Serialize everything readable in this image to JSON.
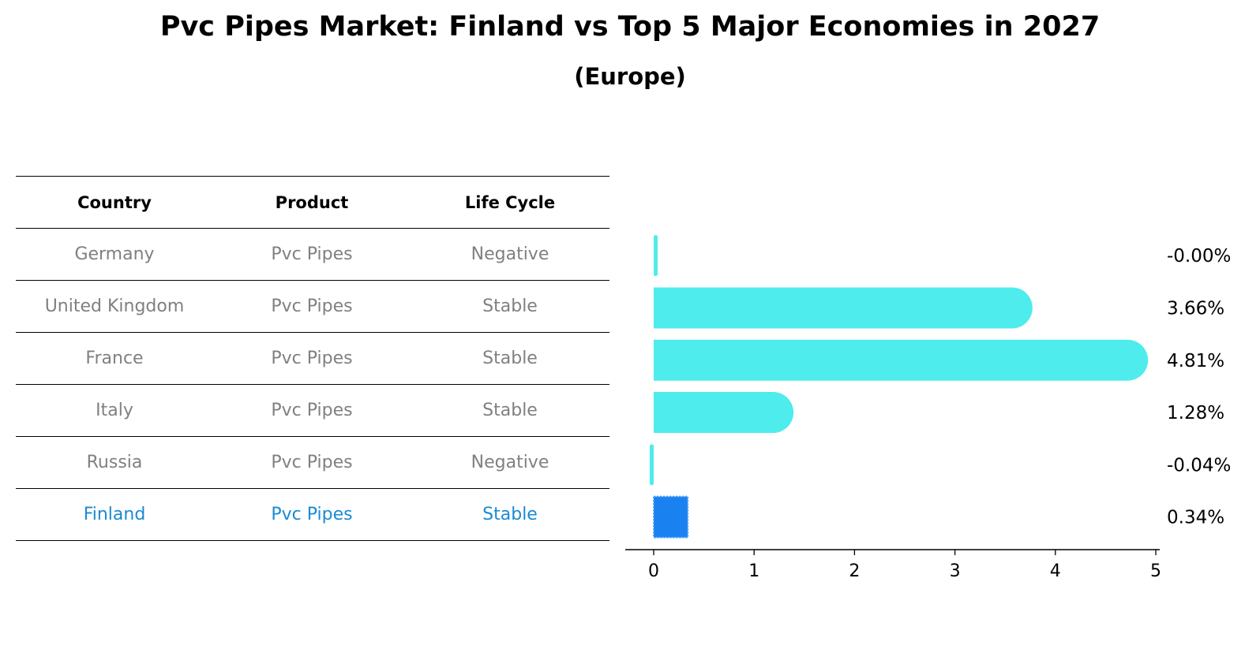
{
  "title": "Pvc Pipes Market: Finland vs Top 5 Major Economies in 2027",
  "subtitle": "(Europe)",
  "table": {
    "headers": [
      "Country",
      "Product",
      "Life Cycle"
    ],
    "rows": [
      [
        "Germany",
        "Pvc Pipes",
        "Negative"
      ],
      [
        "United Kingdom",
        "Pvc Pipes",
        "Stable"
      ],
      [
        "France",
        "Pvc Pipes",
        "Stable"
      ],
      [
        "Italy",
        "Pvc Pipes",
        "Stable"
      ],
      [
        "Russia",
        "Pvc Pipes",
        "Negative"
      ],
      [
        "Finland",
        "Pvc Pipes",
        "Stable"
      ]
    ]
  },
  "colors": {
    "bar": "#4eecec",
    "highlight_bar": "#1a82f0",
    "highlight_text": "#1a8ad4"
  },
  "chart_data": {
    "type": "bar",
    "orientation": "horizontal",
    "categories": [
      "Germany",
      "United Kingdom",
      "France",
      "Italy",
      "Russia",
      "Finland"
    ],
    "values": [
      -0.0,
      3.66,
      4.81,
      1.28,
      -0.04,
      0.34
    ],
    "value_labels": [
      "-0.00%",
      "3.66%",
      "4.81%",
      "1.28%",
      "-0.04%",
      "0.34%"
    ],
    "highlight": "Finland",
    "xlim": [
      -0.3,
      5.05
    ],
    "xticks": [
      0,
      1,
      2,
      3,
      4,
      5
    ],
    "xlabel": "",
    "ylabel": ""
  }
}
